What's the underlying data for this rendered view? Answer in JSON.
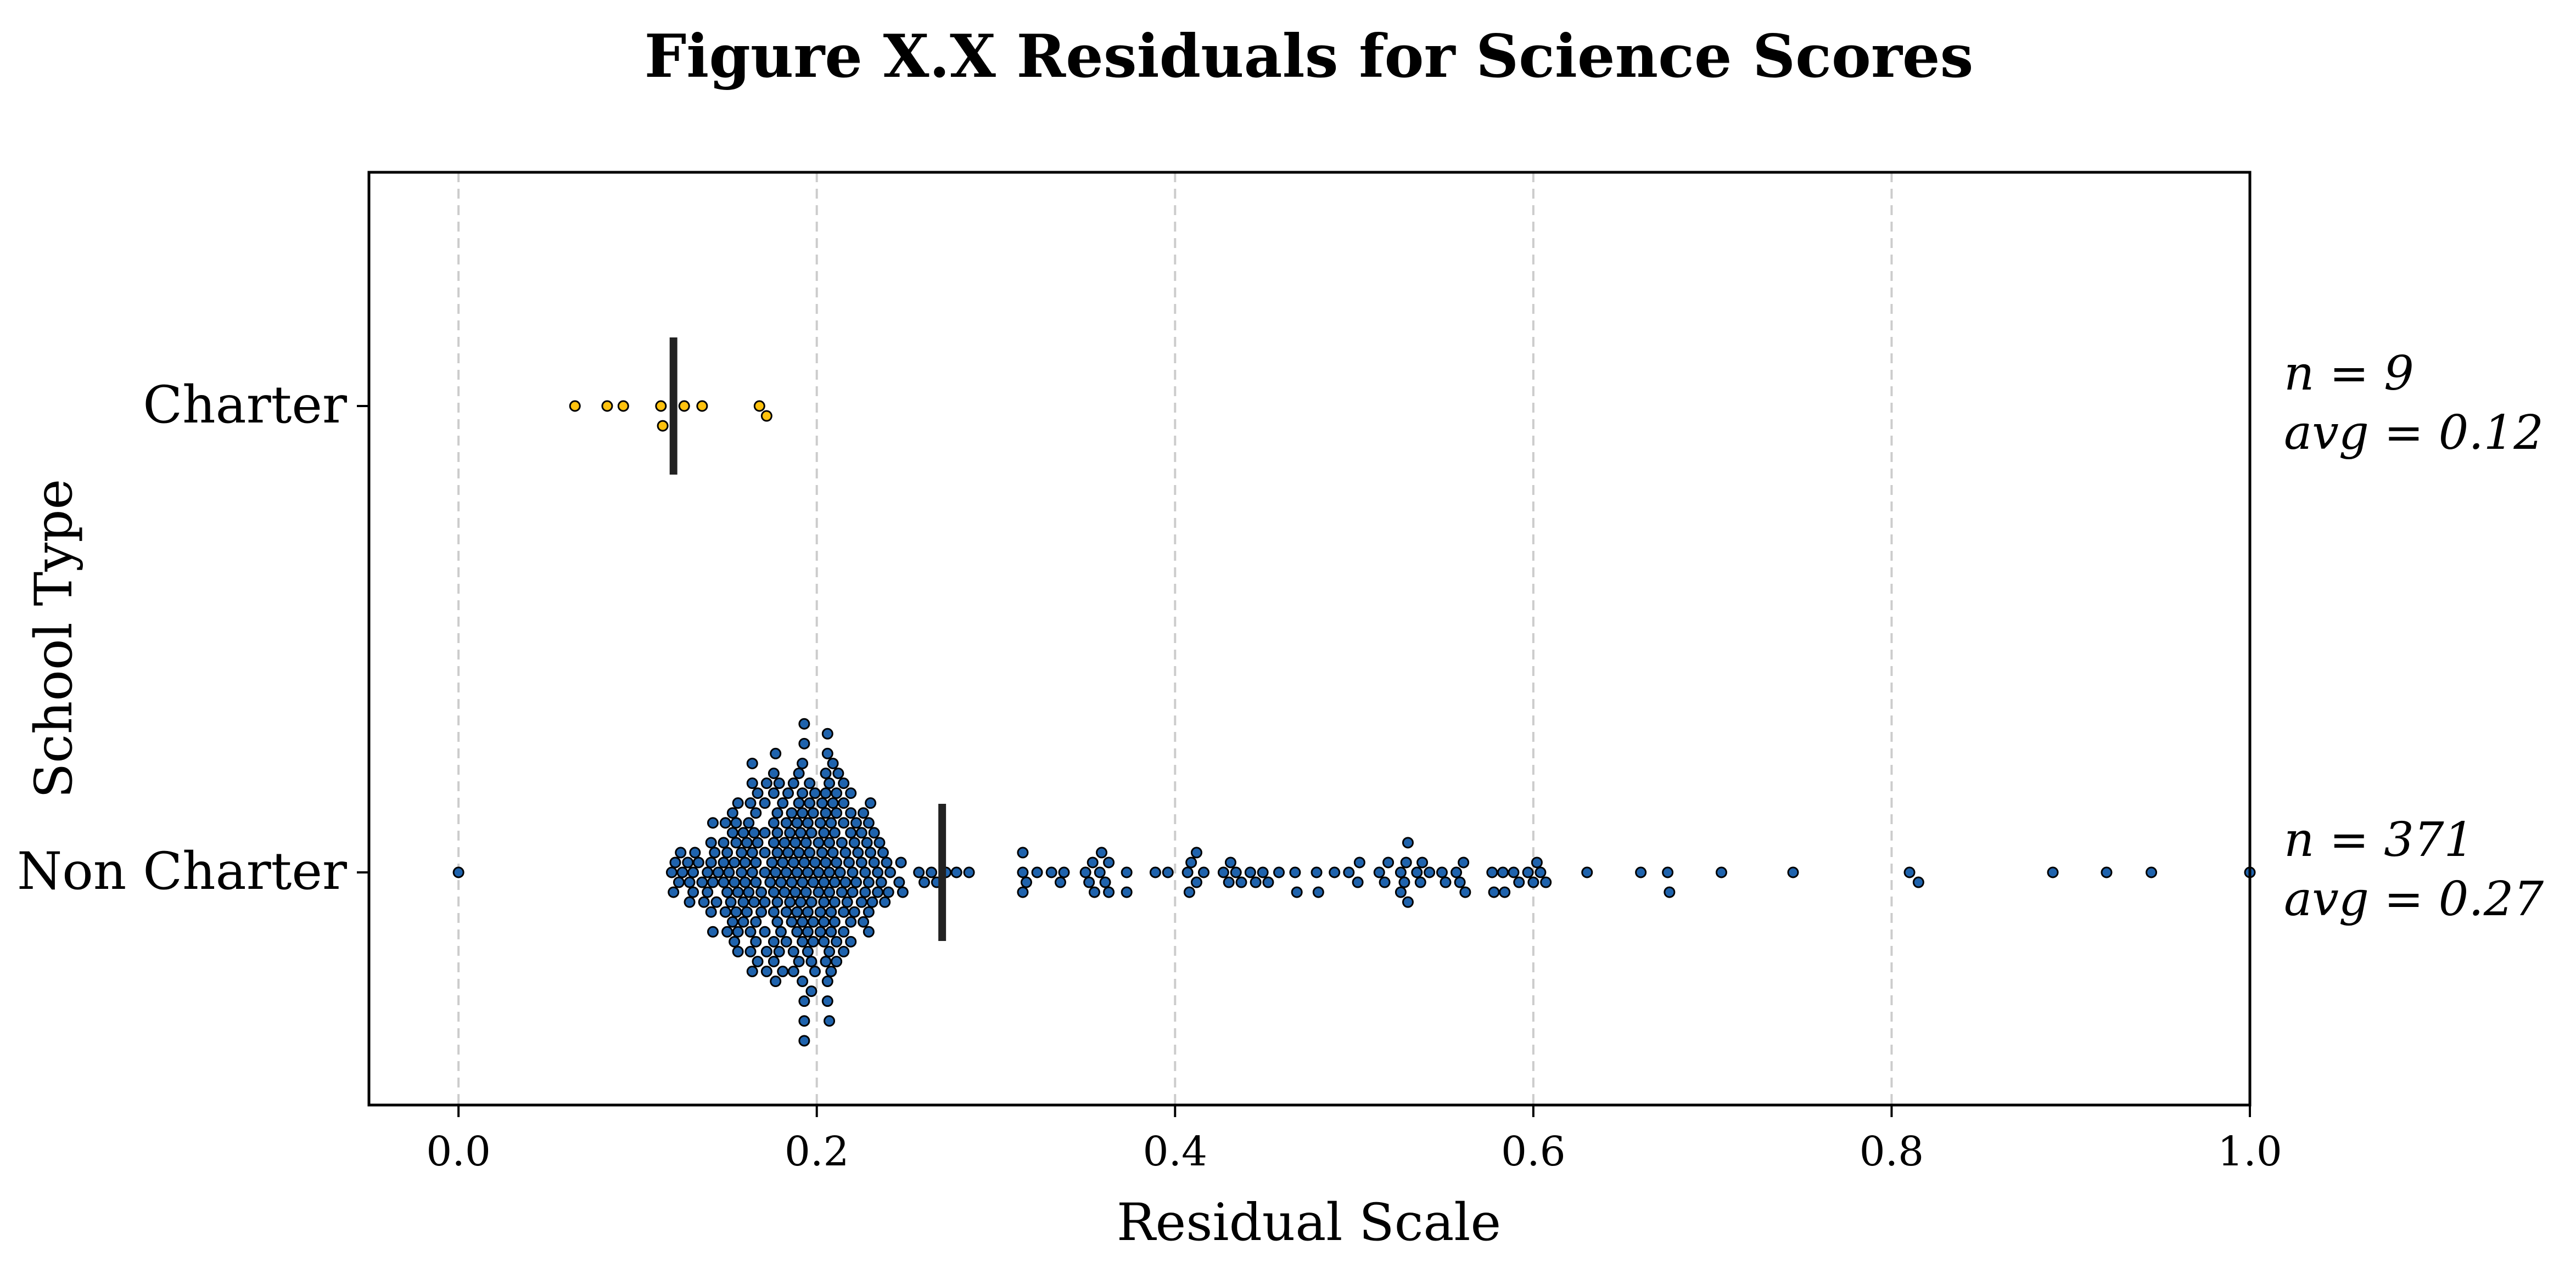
{
  "chart_data": {
    "type": "scatter",
    "subtype": "swarm",
    "title": "Figure X.X Residuals for Science Scores",
    "xlabel": "Residual Scale",
    "ylabel": "School Type",
    "xlim": [
      -0.05,
      1.0
    ],
    "xticks": [
      "0.0",
      "0.2",
      "0.4",
      "0.6",
      "0.8",
      "1.0"
    ],
    "grid": "x-dashed",
    "categories": [
      "Charter",
      "Non Charter"
    ],
    "series": [
      {
        "category": "Charter",
        "color": "#ffc20e",
        "mean": 0.12,
        "annotation": {
          "n_text": "n = 9",
          "avg_text": "avg = 0.12"
        },
        "values": [
          0.065,
          0.083,
          0.092,
          0.113,
          0.114,
          0.126,
          0.136,
          0.168,
          0.172
        ]
      },
      {
        "category": "Non Charter",
        "color": "#1f63ad",
        "mean": 0.27,
        "annotation": {
          "n_text": "n = 371",
          "avg_text": "avg = 0.27"
        },
        "outliers": [
          0.0,
          0.63,
          0.66,
          0.675,
          0.676,
          0.705,
          0.745,
          0.81,
          0.815,
          0.89,
          0.92,
          0.945,
          1.0
        ],
        "bulk_range": [
          0.095,
          0.61
        ],
        "bulk_count": 358
      }
    ]
  }
}
